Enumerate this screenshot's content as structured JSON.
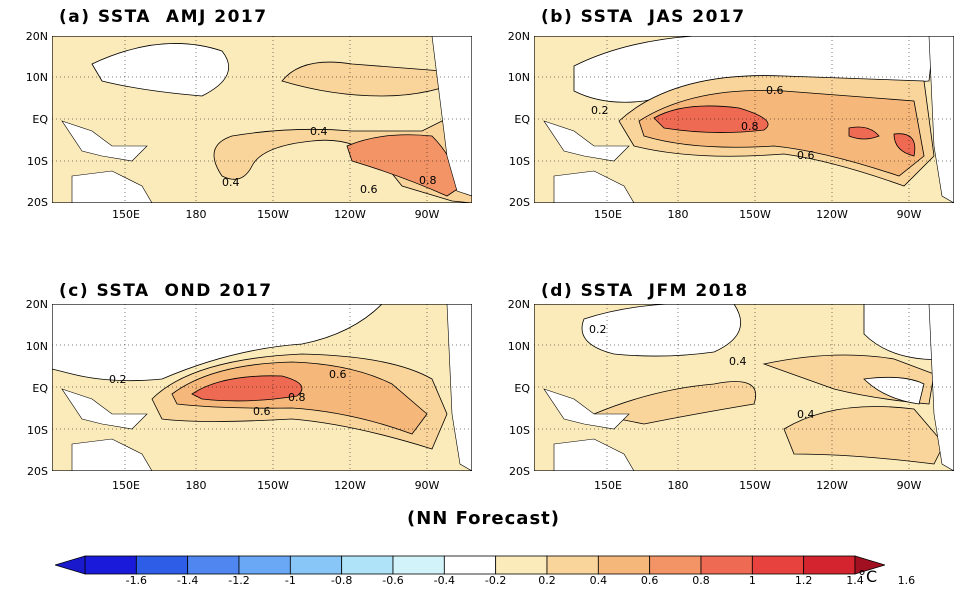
{
  "panels": [
    {
      "title": "(a) SSTA  AMJ 2017",
      "labels": [
        "0.4",
        "0.4",
        "0.6",
        "0.8"
      ]
    },
    {
      "title": "(b) SSTA  JAS 2017",
      "labels": [
        "0.2",
        "0.6",
        "0.8",
        "0.6"
      ]
    },
    {
      "title": "(c) SSTA  OND 2017",
      "labels": [
        "0.2",
        "0.6",
        "0.8",
        "0.6"
      ]
    },
    {
      "title": "(d) SSTA  JFM 2018",
      "labels": [
        "0.2",
        "0.4",
        "0.4"
      ]
    }
  ],
  "lat_ticks": [
    "20N",
    "10N",
    "EQ",
    "10S",
    "20S"
  ],
  "lon_ticks": [
    "150E",
    "180",
    "150W",
    "120W",
    "90W"
  ],
  "footer": "(NN Forecast)",
  "colorbar": {
    "labels": [
      "-1.6",
      "-1.4",
      "-1.2",
      "-1",
      "-0.8",
      "-0.6",
      "-0.4",
      "-0.2",
      "0.2",
      "0.4",
      "0.6",
      "0.8",
      "1",
      "1.2",
      "1.4",
      "1.6"
    ],
    "unit": "°C",
    "colors": [
      "#1a1adb",
      "#2e5ee8",
      "#4f86f0",
      "#6aa8f5",
      "#88c6f7",
      "#aee3f8",
      "#d3f3fb",
      "#ffffff",
      "#fbeaba",
      "#f9d59b",
      "#f5b77a",
      "#f29466",
      "#ef6a53",
      "#e8423f",
      "#d4242f"
    ]
  }
}
